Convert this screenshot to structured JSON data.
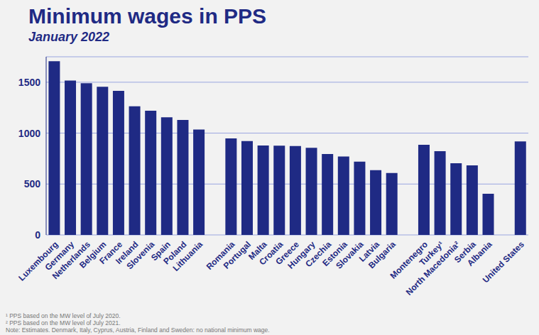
{
  "chart_data": {
    "type": "bar",
    "title": "Minimum wages in PPS",
    "subtitle": "January 2022",
    "categories": [
      "Luxembourg",
      "Germany",
      "Netherlands",
      "Belgium",
      "France",
      "Ireland",
      "Slovenia",
      "Spain",
      "Poland",
      "Lithuania",
      null,
      "Romania",
      "Portugal",
      "Malta",
      "Croatia",
      "Greece",
      "Hungary",
      "Czechia",
      "Estonia",
      "Slovakia",
      "Latvia",
      "Bulgaria",
      null,
      "Montenegro",
      "Turkey¹",
      "North Macedonia²",
      "Serbia",
      "Albania",
      null,
      "United States"
    ],
    "values": [
      1707,
      1516,
      1491,
      1456,
      1416,
      1263,
      1220,
      1155,
      1130,
      1036,
      null,
      948,
      922,
      878,
      876,
      874,
      856,
      795,
      770,
      720,
      636,
      609,
      null,
      886,
      822,
      704,
      684,
      405,
      null,
      919
    ],
    "color": "#1f2a84",
    "ylim": [
      0,
      1750
    ],
    "yticks": [
      0,
      500,
      1000,
      1500
    ],
    "grid": true,
    "notes": [
      "¹ PPS based on the MW level of July 2020.",
      "² PPS based on the MW level of July 2021.",
      "Note: Estimates. Denmark, Italy, Cyprus, Austria, Finland and Sweden: no national minimum wage."
    ]
  }
}
